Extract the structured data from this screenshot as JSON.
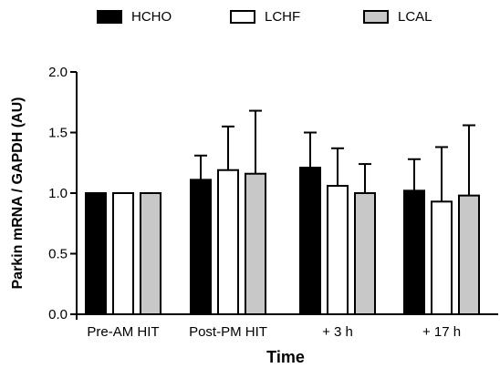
{
  "chart_data": {
    "type": "bar",
    "title": "",
    "xlabel": "Time",
    "ylabel": "Parkin mRNA / GAPDH (AU)",
    "ylim": [
      0,
      2.0
    ],
    "yticks": [
      "0.0",
      "0.5",
      "1.0",
      "1.5",
      "2.0"
    ],
    "categories": [
      "Pre-AM HIT",
      "Post-PM HIT",
      "+ 3 h",
      "+ 17 h"
    ],
    "error_bars": "upper SD",
    "legend_position": "top",
    "grid": false,
    "series": [
      {
        "name": "HCHO",
        "color": "#000000",
        "values": [
          1.0,
          1.11,
          1.21,
          1.02
        ],
        "errors": [
          0.0,
          0.2,
          0.29,
          0.26
        ]
      },
      {
        "name": "LCHF",
        "color": "#ffffff",
        "values": [
          1.0,
          1.19,
          1.06,
          0.93
        ],
        "errors": [
          0.0,
          0.36,
          0.31,
          0.45
        ]
      },
      {
        "name": "LCAL",
        "color": "#c8c8c8",
        "values": [
          1.0,
          1.16,
          1.0,
          0.98
        ],
        "errors": [
          0.0,
          0.52,
          0.24,
          0.58
        ]
      }
    ]
  }
}
